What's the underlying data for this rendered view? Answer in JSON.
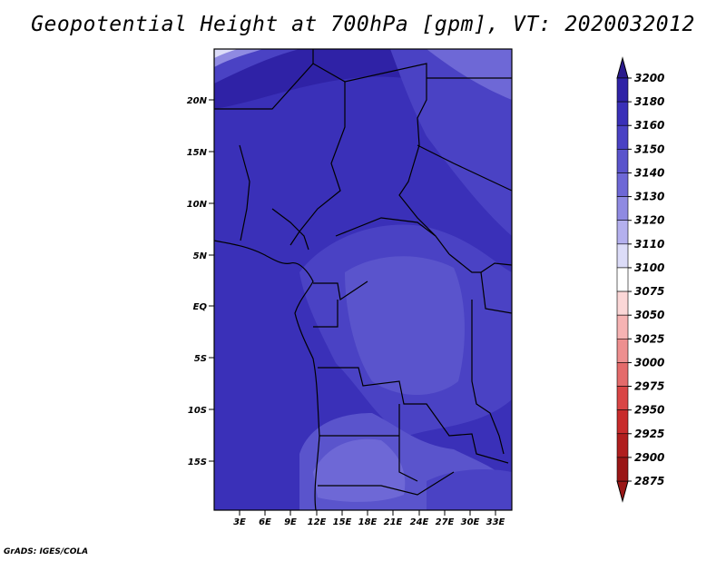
{
  "title": "Geopotential Height at 700hPa [gpm], VT: 2020032012",
  "credit": "GrADS: IGES/COLA",
  "map": {
    "lat_ticks": [
      "20N",
      "15N",
      "10N",
      "5N",
      "EQ",
      "5S",
      "10S",
      "15S"
    ],
    "lon_ticks": [
      "3E",
      "6E",
      "9E",
      "12E",
      "15E",
      "18E",
      "21E",
      "24E",
      "27E",
      "30E",
      "33E"
    ]
  },
  "colorbar": {
    "levels": [
      "3200",
      "3180",
      "3160",
      "3150",
      "3140",
      "3130",
      "3120",
      "3110",
      "3100",
      "3075",
      "3050",
      "3025",
      "3000",
      "2975",
      "2950",
      "2925",
      "2900",
      "2875"
    ],
    "colors": [
      "#2a1a8c",
      "#2f22a6",
      "#3a30b8",
      "#4a42c4",
      "#5a54cc",
      "#6e68d6",
      "#8f8ae2",
      "#b4b0ee",
      "#dcdcf8",
      "#ffffff",
      "#fbd7d7",
      "#f6b3b3",
      "#ee8f8f",
      "#e46b6b",
      "#d94646",
      "#c82c2c",
      "#b01e1e",
      "#9a1616"
    ]
  },
  "chart_data": {
    "type": "heatmap",
    "title": "Geopotential Height at 700hPa [gpm], VT: 2020032012",
    "x_ticks": [
      "3E",
      "6E",
      "9E",
      "12E",
      "15E",
      "18E",
      "21E",
      "24E",
      "27E",
      "30E",
      "33E"
    ],
    "y_ticks": [
      "20N",
      "15N",
      "10N",
      "5N",
      "EQ",
      "5S",
      "10S",
      "15S"
    ],
    "xlim": [
      0,
      35
    ],
    "ylim": [
      -20,
      25
    ],
    "levels": [
      2875,
      2900,
      2925,
      2950,
      2975,
      3000,
      3025,
      3050,
      3075,
      3100,
      3110,
      3120,
      3130,
      3140,
      3150,
      3160,
      3180,
      3200
    ],
    "units": "gpm"
  }
}
